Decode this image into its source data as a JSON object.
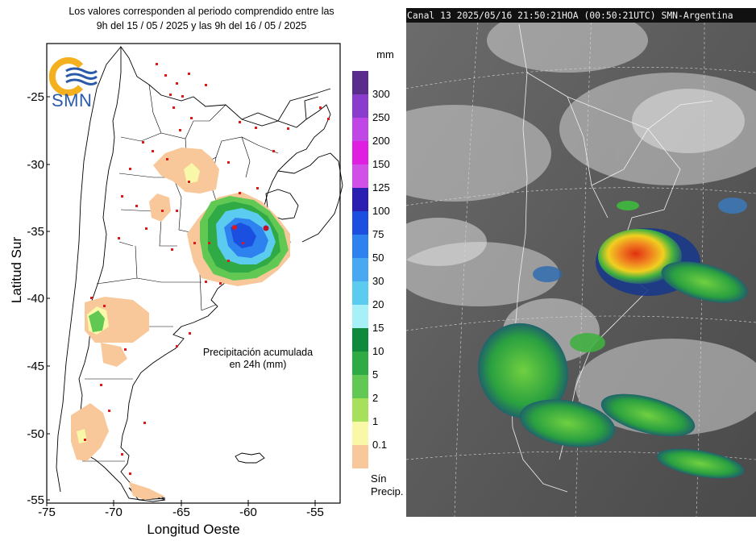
{
  "left_panel": {
    "header_line1": "Los valores corresponden al periodo comprendido entre las",
    "header_line2": "9h del 15 / 05 / 2025  y las 9h del 16 / 05 / 2025",
    "logo_text": "SMN",
    "annotation_line1": "Precipitación acumulada",
    "annotation_line2": "en 24h (mm)",
    "y_axis_label": "Latitud Sur",
    "x_axis_label": "Longitud Oeste",
    "y_ticks": [
      "-25",
      "-30",
      "-35",
      "-40",
      "-45",
      "-50",
      "-55"
    ],
    "x_ticks": [
      "-75",
      "-70",
      "-65",
      "-60",
      "-55"
    ],
    "legend_unit": "mm",
    "legend": [
      {
        "label": "300",
        "color": "#5a2d8c"
      },
      {
        "label": "250",
        "color": "#8a3ccc"
      },
      {
        "label": "200",
        "color": "#c046e6"
      },
      {
        "label": "150",
        "color": "#e020e0"
      },
      {
        "label": "125",
        "color": "#d050e8"
      },
      {
        "label": "100",
        "color": "#2a1fb0"
      },
      {
        "label": "75",
        "color": "#1a4fe0"
      },
      {
        "label": "50",
        "color": "#2e82f0"
      },
      {
        "label": "30",
        "color": "#49a8f2"
      },
      {
        "label": "20",
        "color": "#5ccbf0"
      },
      {
        "label": "15",
        "color": "#a8f0f8"
      },
      {
        "label": "10",
        "color": "#0f8a3c"
      },
      {
        "label": "5",
        "color": "#2faa45"
      },
      {
        "label": "2",
        "color": "#62c854"
      },
      {
        "label": "1",
        "color": "#a7e05a"
      },
      {
        "label": "0.1",
        "color": "#f8f8a8"
      },
      {
        "label": "",
        "color": "#f8c89a"
      }
    ],
    "no_precip_line1": "Sín",
    "no_precip_line2": "Precip."
  },
  "right_panel": {
    "title": "Canal 13 2025/05/16 21:50:21HOA (00:50:21UTC) SMN-Argentina"
  },
  "colors": {
    "precip_light": "#f8c89a",
    "precip_yellow": "#f8f8a8",
    "station_dot": "#e01818",
    "logo_orange": "#f4b01e",
    "logo_blue": "#2a5aa8"
  }
}
